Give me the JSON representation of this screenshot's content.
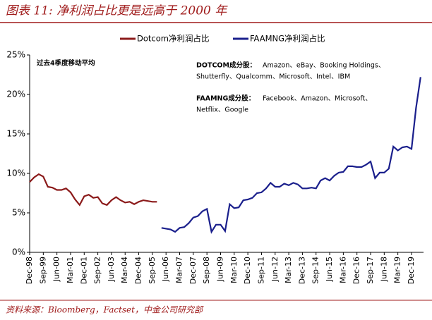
{
  "chart_data": {
    "type": "line",
    "title": "图表 11:  净利润占比更是远高于 2000 年",
    "source": "资料来源：Bloomberg，Factset，中金公司研究部",
    "annotations": {
      "note": "过去4季度移动平均",
      "dotcom_label": "DOTCOM成分股：",
      "dotcom_lines": [
        "Amazon、eBay、Booking Holdings、",
        "Shutterfly、Qualcomm、Microsoft、Intel、IBM"
      ],
      "faamng_label": "FAAMNG成分股：",
      "faamng_lines": [
        "Facebook、Amazon、Microsoft、",
        "Netflix、Google"
      ]
    },
    "categories": [
      "Dec-98",
      null,
      null,
      "Sep-99",
      null,
      null,
      "Jun-00",
      null,
      null,
      "Mar-01",
      null,
      null,
      "Dec-01",
      null,
      null,
      "Sep-02",
      null,
      null,
      "Jun-03",
      null,
      null,
      "Mar-04",
      null,
      null,
      "Dec-04",
      null,
      null,
      "Sep-05",
      null,
      null,
      "Jun-06",
      null,
      null,
      "Mar-07",
      null,
      null,
      "Dec-07",
      null,
      null,
      "Sep-08",
      null,
      null,
      "Jun-09",
      null,
      null,
      "Mar-10",
      null,
      null,
      "Dec-10",
      null,
      null,
      "Sep-11",
      null,
      null,
      "Jun-12",
      null,
      null,
      "Mar-13",
      null,
      null,
      "Dec-13",
      null,
      null,
      "Sep-14",
      null,
      null,
      "Jun-15",
      null,
      null,
      "Mar-16",
      null,
      null,
      "Dec-16",
      null,
      null,
      "Sep-17",
      null,
      null,
      "Jun-18",
      null,
      null,
      "Mar-19",
      null,
      null,
      "Dec-19",
      null,
      null
    ],
    "series": [
      {
        "name": "Dotcom净利润占比",
        "color": "#8b1a1a",
        "values": [
          8.9,
          9.5,
          9.9,
          9.6,
          8.3,
          8.2,
          7.9,
          7.9,
          8.1,
          7.6,
          6.7,
          6.0,
          7.1,
          7.3,
          6.9,
          7.0,
          6.2,
          6.0,
          6.6,
          7.0,
          6.6,
          6.3,
          6.4,
          6.1,
          6.4,
          6.6,
          6.5,
          6.4,
          6.4,
          null,
          null,
          null,
          null,
          null,
          null,
          null,
          null,
          null,
          null,
          null,
          null,
          null,
          null,
          null,
          null,
          null,
          null,
          null,
          null,
          null,
          null,
          null,
          null,
          null,
          null,
          null,
          null,
          null,
          null,
          null,
          null,
          null,
          null,
          null,
          null,
          null,
          null,
          null,
          null,
          null,
          null,
          null,
          null,
          null,
          null,
          null,
          null,
          null,
          null,
          null,
          null,
          null,
          null,
          null,
          null,
          null,
          null
        ]
      },
      {
        "name": "FAAMNG净利润占比",
        "color": "#1a1f8c",
        "values": [
          null,
          null,
          null,
          null,
          null,
          null,
          null,
          null,
          null,
          null,
          null,
          null,
          null,
          null,
          null,
          null,
          null,
          null,
          null,
          null,
          null,
          null,
          null,
          null,
          null,
          null,
          null,
          null,
          null,
          3.1,
          3.0,
          2.9,
          2.6,
          3.1,
          3.2,
          3.7,
          4.4,
          4.6,
          5.2,
          5.5,
          2.6,
          3.5,
          3.5,
          2.7,
          6.1,
          5.6,
          5.7,
          6.6,
          6.7,
          6.9,
          7.5,
          7.6,
          8.1,
          8.8,
          8.3,
          8.3,
          8.7,
          8.5,
          8.8,
          8.6,
          8.1,
          8.1,
          8.2,
          8.1,
          9.1,
          9.4,
          9.1,
          9.7,
          10.1,
          10.2,
          10.9,
          10.9,
          10.8,
          10.8,
          11.1,
          11.5,
          9.4,
          10.1,
          10.1,
          10.6,
          13.4,
          12.9,
          13.3,
          13.4,
          13.1,
          18.3,
          22.2
        ]
      }
    ],
    "ylim": [
      0,
      25
    ],
    "yticks": [
      {
        "value": 0,
        "label": "0%"
      },
      {
        "value": 5,
        "label": "5%"
      },
      {
        "value": 10,
        "label": "10%"
      },
      {
        "value": 15,
        "label": "15%"
      },
      {
        "value": 20,
        "label": "20%"
      },
      {
        "value": 25,
        "label": "25%"
      }
    ],
    "legend": "top"
  }
}
